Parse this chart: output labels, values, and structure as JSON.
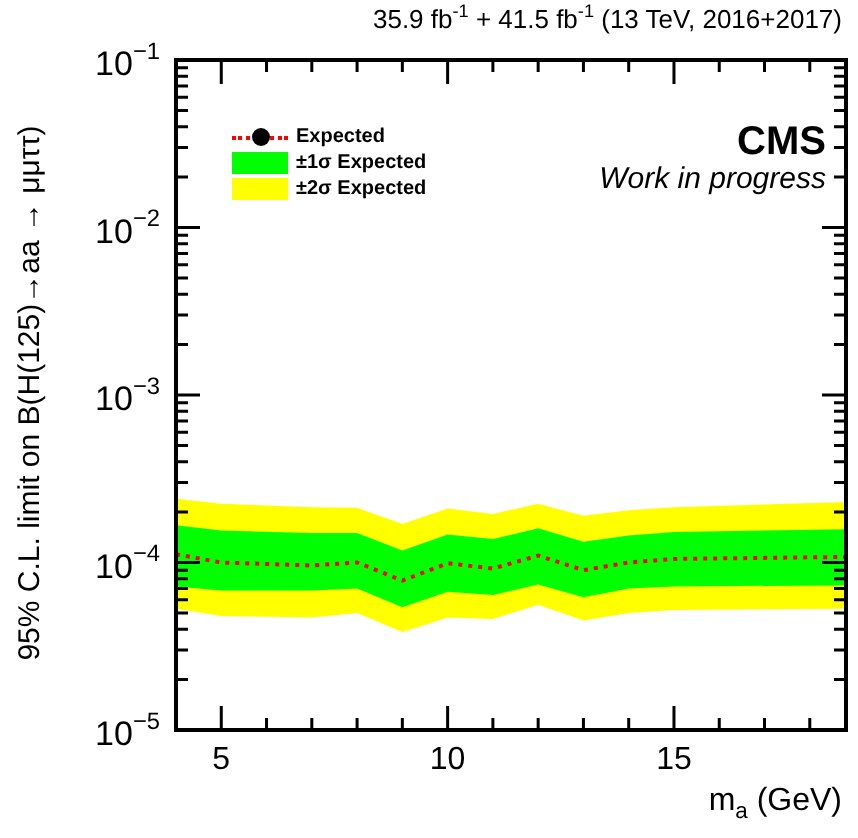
{
  "chart_data": {
    "type": "line",
    "title": "35.9 fb$^{-1}$ + 41.5 fb$^{-1}$ (13 TeV, 2016+2017)",
    "xlabel": "m$_{a}$ (GeV)",
    "ylabel": "95% C.L. limit on B(H(125)→aa → μμττ)",
    "annotations": [
      "CMS",
      "Work in progress"
    ],
    "x": [
      4,
      5,
      7,
      8,
      9,
      10,
      11,
      12,
      13,
      14,
      15,
      18.8
    ],
    "series": [
      {
        "name": "±2σ Expected",
        "type": "line",
        "color": "#ffff00",
        "values": [
          null,
          null,
          null,
          null,
          null,
          null,
          null,
          null,
          null,
          null,
          null,
          null
        ],
        "lower": [
          5.3e-05,
          4.8e-05,
          4.7e-05,
          5e-05,
          3.85e-05,
          4.7e-05,
          4.6e-05,
          5.6e-05,
          4.5e-05,
          5e-05,
          5.2e-05,
          5.3e-05
        ],
        "upper": [
          0.00024,
          0.000224,
          0.000214,
          0.000212,
          0.00017,
          0.00021,
          0.000195,
          0.000224,
          0.00019,
          0.000205,
          0.000214,
          0.00023
        ]
      },
      {
        "name": "±1σ Expected",
        "type": "line",
        "color": "#00ff00",
        "values": [
          null,
          null,
          null,
          null,
          null,
          null,
          null,
          null,
          null,
          null,
          null,
          null
        ],
        "lower": [
          7.2e-05,
          6.8e-05,
          6.8e-05,
          7e-05,
          5.4e-05,
          6.7e-05,
          6.4e-05,
          7.4e-05,
          6.2e-05,
          7e-05,
          7.2e-05,
          7.3e-05
        ],
        "upper": [
          0.000167,
          0.000155,
          0.00015,
          0.00015,
          0.000118,
          0.000147,
          0.000138,
          0.00016,
          0.000133,
          0.000145,
          0.000152,
          0.000158
        ]
      },
      {
        "name": "Expected",
        "type": "line",
        "color": "#ff0000",
        "line_style": "dotted",
        "values": [
          0.000112,
          0.0001,
          9.6e-05,
          0.0001,
          7.8e-05,
          9.9e-05,
          9.2e-05,
          0.00011,
          9e-05,
          0.0001,
          0.000105,
          0.000108
        ]
      }
    ],
    "log": "y",
    "grid": false,
    "legend": "top left",
    "xlim": [
      4,
      18.8
    ],
    "xticks": [
      5,
      {
        "value": 6,
        "label": null
      },
      {
        "value": 7,
        "label": null
      },
      {
        "value": 8,
        "label": null
      },
      {
        "value": 9,
        "label": null
      },
      10,
      {
        "value": 11,
        "label": null
      },
      {
        "value": 12,
        "label": null
      },
      {
        "value": 13,
        "label": null
      },
      {
        "value": 14,
        "label": null
      },
      15,
      {
        "value": 16,
        "label": null
      },
      {
        "value": 17,
        "label": null
      },
      {
        "value": 18,
        "label": null
      }
    ],
    "ylim": [
      1e-05,
      0.1
    ],
    "yticks": [
      {
        "value": 1e-05,
        "label": "10$^{−5}$"
      },
      {
        "value": 2e-05,
        "label": null
      },
      {
        "value": 3e-05,
        "label": null
      },
      {
        "value": 4e-05,
        "label": null
      },
      {
        "value": 5e-05,
        "label": null
      },
      {
        "value": 6e-05,
        "label": null
      },
      {
        "value": 7e-05,
        "label": null
      },
      {
        "value": 8e-05,
        "label": null
      },
      {
        "value": 9e-05,
        "label": null
      },
      {
        "value": 0.0001,
        "label": "10$^{−4}$"
      },
      {
        "value": 0.0002,
        "label": null
      },
      {
        "value": 0.0003,
        "label": null
      },
      {
        "value": 0.0004,
        "label": null
      },
      {
        "value": 0.0005,
        "label": null
      },
      {
        "value": 0.0006,
        "label": null
      },
      {
        "value": 0.0007,
        "label": null
      },
      {
        "value": 0.0008,
        "label": null
      },
      {
        "value": 0.0009,
        "label": null
      },
      {
        "value": 0.001,
        "label": "10$^{−3}$"
      },
      {
        "value": 0.002,
        "label": null
      },
      {
        "value": 0.003,
        "label": null
      },
      {
        "value": 0.004,
        "label": null
      },
      {
        "value": 0.005,
        "label": null
      },
      {
        "value": 0.006,
        "label": null
      },
      {
        "value": 0.007,
        "label": null
      },
      {
        "value": 0.008,
        "label": null
      },
      {
        "value": 0.009,
        "label": null
      },
      {
        "value": 0.01,
        "label": "10$^{−2}$"
      },
      {
        "value": 0.02,
        "label": null
      },
      {
        "value": 0.03,
        "label": null
      },
      {
        "value": 0.04,
        "label": null
      },
      {
        "value": 0.05,
        "label": null
      },
      {
        "value": 0.06,
        "label": null
      },
      {
        "value": 0.07,
        "label": null
      },
      {
        "value": 0.08,
        "label": null
      },
      {
        "value": 0.09,
        "label": null
      },
      {
        "value": 0.1,
        "label": "10$^{−1}$"
      }
    ]
  }
}
